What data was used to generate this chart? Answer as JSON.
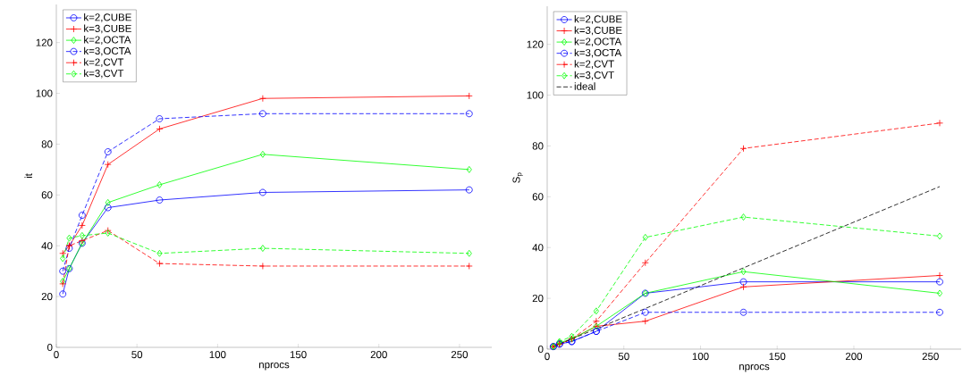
{
  "chart_data": [
    {
      "type": "line",
      "xlabel": "nprocs",
      "ylabel": "it",
      "x": [
        4,
        8,
        16,
        32,
        64,
        128,
        256
      ],
      "xlim": [
        0,
        270
      ],
      "ylim": [
        0,
        135
      ],
      "xticks": [
        0,
        50,
        100,
        150,
        200,
        250
      ],
      "yticks": [
        0,
        20,
        40,
        60,
        80,
        100,
        120
      ],
      "legend": "top left",
      "grid": false,
      "series": [
        {
          "name": "k=2,CUBE",
          "color": "#0000ff",
          "marker": "circle",
          "line_style": "solid",
          "values": [
            21,
            31,
            41,
            55,
            58,
            61,
            62
          ]
        },
        {
          "name": "k=3,CUBE",
          "color": "#ff0000",
          "marker": "cross",
          "line_style": "solid",
          "values": [
            37,
            40,
            48,
            72,
            86,
            98,
            99
          ]
        },
        {
          "name": "k=2,OCTA",
          "color": "#00ff00",
          "marker": "diamond",
          "line_style": "solid",
          "values": [
            26,
            31,
            41,
            57,
            64,
            76,
            70
          ]
        },
        {
          "name": "k=3,OCTA",
          "color": "#0000ff",
          "marker": "circle",
          "line_style": "dashed",
          "values": [
            30,
            39,
            52,
            77,
            90,
            92,
            92
          ]
        },
        {
          "name": "k=2,CVT",
          "color": "#ff0000",
          "marker": "cross",
          "line_style": "dashed",
          "values": [
            25,
            40,
            42,
            46,
            33,
            32,
            32
          ]
        },
        {
          "name": "k=3,CVT",
          "color": "#00ff00",
          "marker": "diamond",
          "line_style": "dashed",
          "values": [
            35,
            43,
            44,
            45,
            37,
            39,
            37
          ]
        }
      ]
    },
    {
      "type": "line",
      "xlabel": "nprocs",
      "ylabel": "S$_{p}$",
      "x": [
        4,
        8,
        16,
        32,
        64,
        128,
        256
      ],
      "xlim": [
        0,
        270
      ],
      "ylim": [
        0,
        135
      ],
      "xticks": [
        0,
        50,
        100,
        150,
        200,
        250
      ],
      "yticks": [
        0,
        20,
        40,
        60,
        80,
        100,
        120
      ],
      "legend": "top left",
      "grid": false,
      "series": [
        {
          "name": "k=2,CUBE",
          "color": "#0000ff",
          "marker": "circle",
          "line_style": "solid",
          "values": [
            1,
            2,
            3,
            7,
            22,
            26.5,
            26.5
          ]
        },
        {
          "name": "k=3,CUBE",
          "color": "#ff0000",
          "marker": "cross",
          "line_style": "solid",
          "values": [
            1,
            2,
            4,
            9,
            11,
            24.5,
            29
          ]
        },
        {
          "name": "k=2,OCTA",
          "color": "#00ff00",
          "marker": "diamond",
          "line_style": "solid",
          "values": [
            1,
            2.5,
            4,
            9,
            22,
            30.5,
            22
          ]
        },
        {
          "name": "k=3,OCTA",
          "color": "#0000ff",
          "marker": "circle",
          "line_style": "dashed",
          "values": [
            1,
            2,
            3,
            7,
            14.5,
            14.5,
            14.5
          ]
        },
        {
          "name": "k=2,CVT",
          "color": "#ff0000",
          "marker": "cross",
          "line_style": "dashed",
          "values": [
            1,
            2,
            4,
            11,
            34,
            79,
            89
          ]
        },
        {
          "name": "k=3,CVT",
          "color": "#00ff00",
          "marker": "diamond",
          "line_style": "dashed",
          "values": [
            1,
            3,
            5,
            15,
            44,
            52,
            44.5
          ]
        },
        {
          "name": "ideal",
          "color": "#000000",
          "marker": "none",
          "line_style": "dashed",
          "x": [
            4,
            256
          ],
          "values": [
            1,
            64
          ]
        }
      ]
    }
  ]
}
